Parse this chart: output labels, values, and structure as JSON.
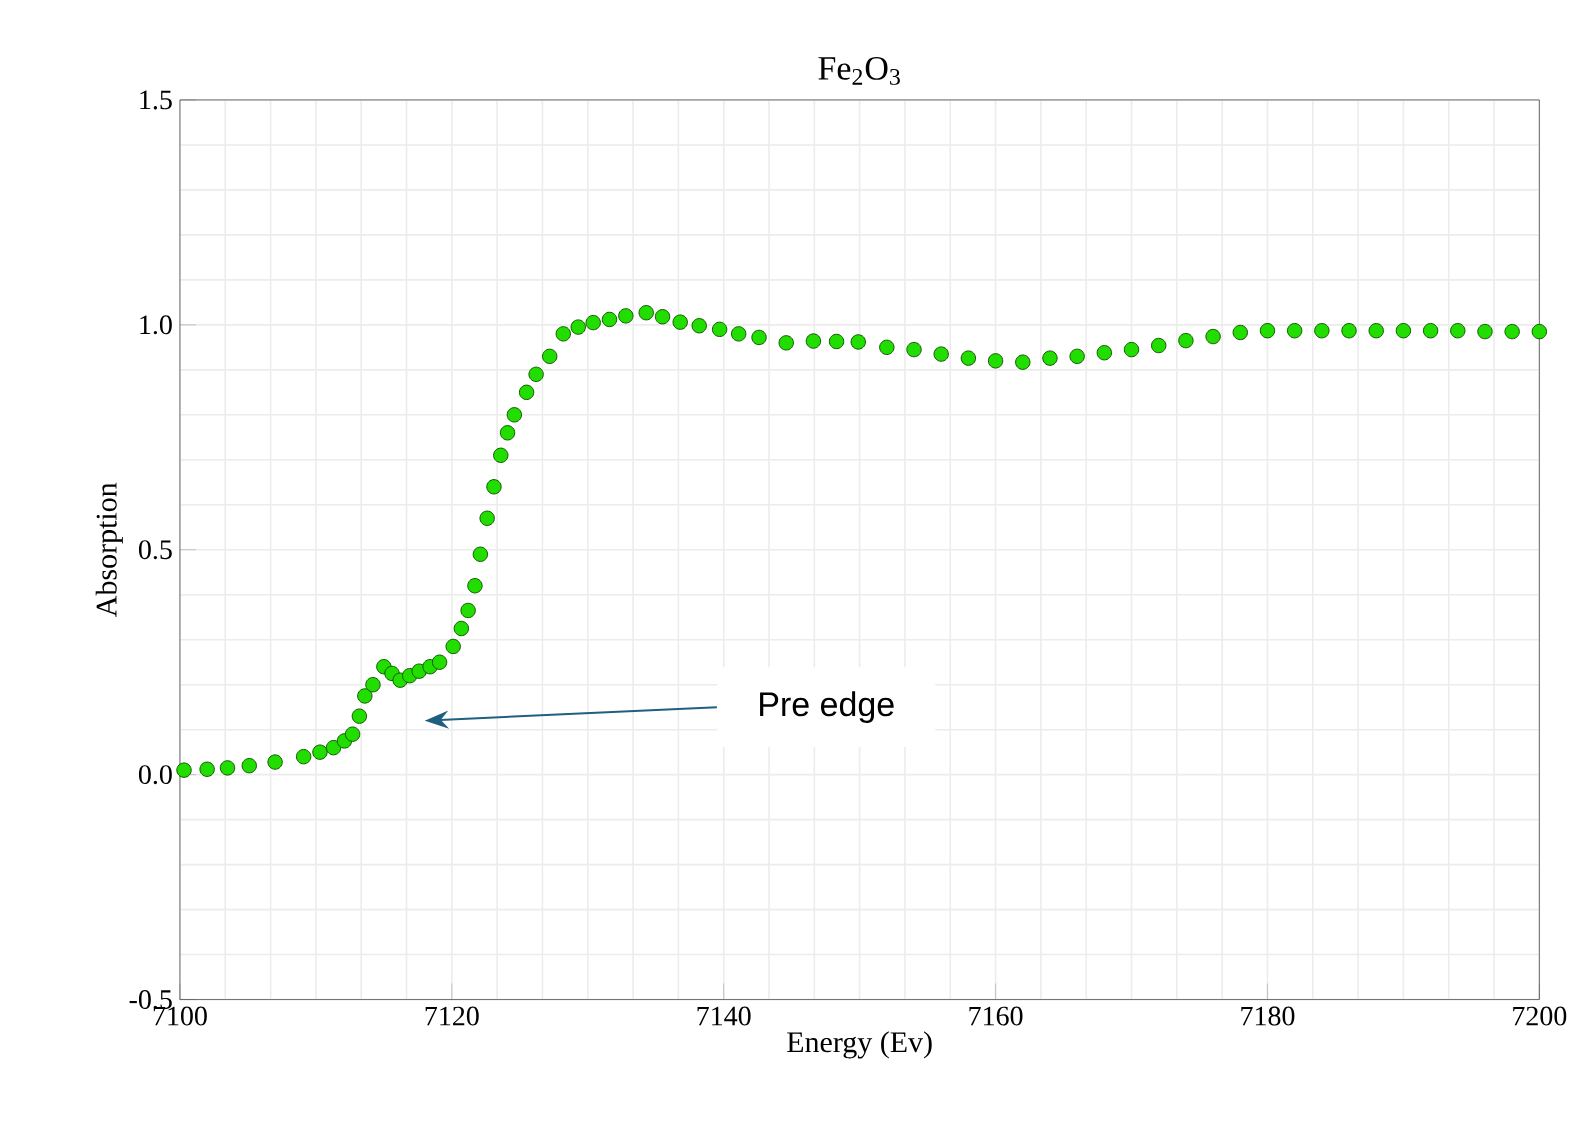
{
  "chart_data": {
    "type": "scatter",
    "title": "Fe$_{2}$O$_{3}$",
    "xlabel": "Energy (Ev)",
    "ylabel": "Absorption",
    "x": [
      7100.3,
      7102,
      7103.5,
      7105.1,
      7107,
      7109.1,
      7110.3,
      7111.3,
      7112.1,
      7112.7,
      7113.2,
      7113.6,
      7114.2,
      7115.0,
      7115.6,
      7116.2,
      7116.9,
      7117.6,
      7118.4,
      7119.1,
      7120.1,
      7120.7,
      7121.2,
      7121.7,
      7122.1,
      7122.6,
      7123.1,
      7123.6,
      7124.1,
      7124.6,
      7125.5,
      7126.2,
      7127.2,
      7128.2,
      7129.3,
      7130.4,
      7131.6,
      7132.8,
      7134.3,
      7135.5,
      7136.8,
      7138.2,
      7139.7,
      7141.1,
      7142.6,
      7144.6,
      7146.6,
      7148.3,
      7149.9,
      7152,
      7154,
      7156,
      7158,
      7160,
      7162,
      7164,
      7166,
      7168,
      7170,
      7172,
      7174,
      7176,
      7178,
      7180,
      7182,
      7184,
      7186,
      7188,
      7190,
      7192,
      7194,
      7196,
      7198,
      7200
    ],
    "series": [
      {
        "color": "#22dd00",
        "values": [
          0.01,
          0.012,
          0.015,
          0.02,
          0.028,
          0.04,
          0.05,
          0.06,
          0.075,
          0.09,
          0.13,
          0.175,
          0.2,
          0.24,
          0.225,
          0.21,
          0.22,
          0.23,
          0.24,
          0.25,
          0.285,
          0.325,
          0.365,
          0.42,
          0.49,
          0.57,
          0.64,
          0.71,
          0.76,
          0.8,
          0.85,
          0.89,
          0.93,
          0.98,
          0.995,
          1.005,
          1.012,
          1.02,
          1.027,
          1.018,
          1.006,
          0.998,
          0.99,
          0.98,
          0.972,
          0.96,
          0.964,
          0.963,
          0.962,
          0.95,
          0.945,
          0.935,
          0.926,
          0.92,
          0.917,
          0.926,
          0.93,
          0.938,
          0.945,
          0.954,
          0.965,
          0.974,
          0.983,
          0.987,
          0.987,
          0.987,
          0.987,
          0.987,
          0.987,
          0.987,
          0.987,
          0.985,
          0.985,
          0.985
        ]
      }
    ],
    "xlim": [
      7100,
      7200
    ],
    "xticks": [
      7100,
      7120,
      7140,
      7160,
      7180,
      7200
    ],
    "ylim": [
      -0.5,
      1.5
    ],
    "yticks": [
      {
        "value": -0.5,
        "label": "-0.5"
      },
      {
        "value": 0,
        "label": "0.0"
      },
      {
        "value": 0.5,
        "label": "0.5"
      },
      {
        "value": 1,
        "label": "1.0"
      },
      {
        "value": 1.5,
        "label": "1.5"
      }
    ],
    "grid": true,
    "marker": "circle",
    "annotations": [
      "Pre edge"
    ]
  }
}
